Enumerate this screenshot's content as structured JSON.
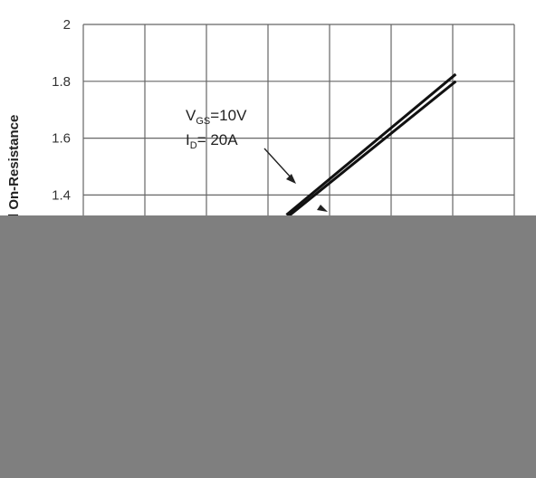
{
  "chart_data": {
    "type": "line",
    "title": "",
    "xlabel": "",
    "ylabel": "d On-Resistance",
    "ylim": [
      0.8,
      2
    ],
    "y_ticks": [
      "2",
      "1.8",
      "1.6",
      "1.4"
    ],
    "x_domain": [
      0,
      7
    ],
    "grid": true,
    "series": [
      {
        "x": [
          3.3,
          6.05
        ],
        "values": [
          1.33,
          1.825
        ]
      },
      {
        "x": [
          3.3,
          6.05
        ],
        "values": [
          1.32,
          1.8
        ]
      }
    ],
    "annotation": {
      "line1_main": "V",
      "line1_sub": "GS",
      "line1_rest": "=10V",
      "line2_main": "I",
      "line2_sub": "D",
      "line2_rest": "= 20A"
    },
    "colors": {
      "grid": "#666666",
      "line": "#111111",
      "occluder": "#7f7f7f"
    }
  }
}
